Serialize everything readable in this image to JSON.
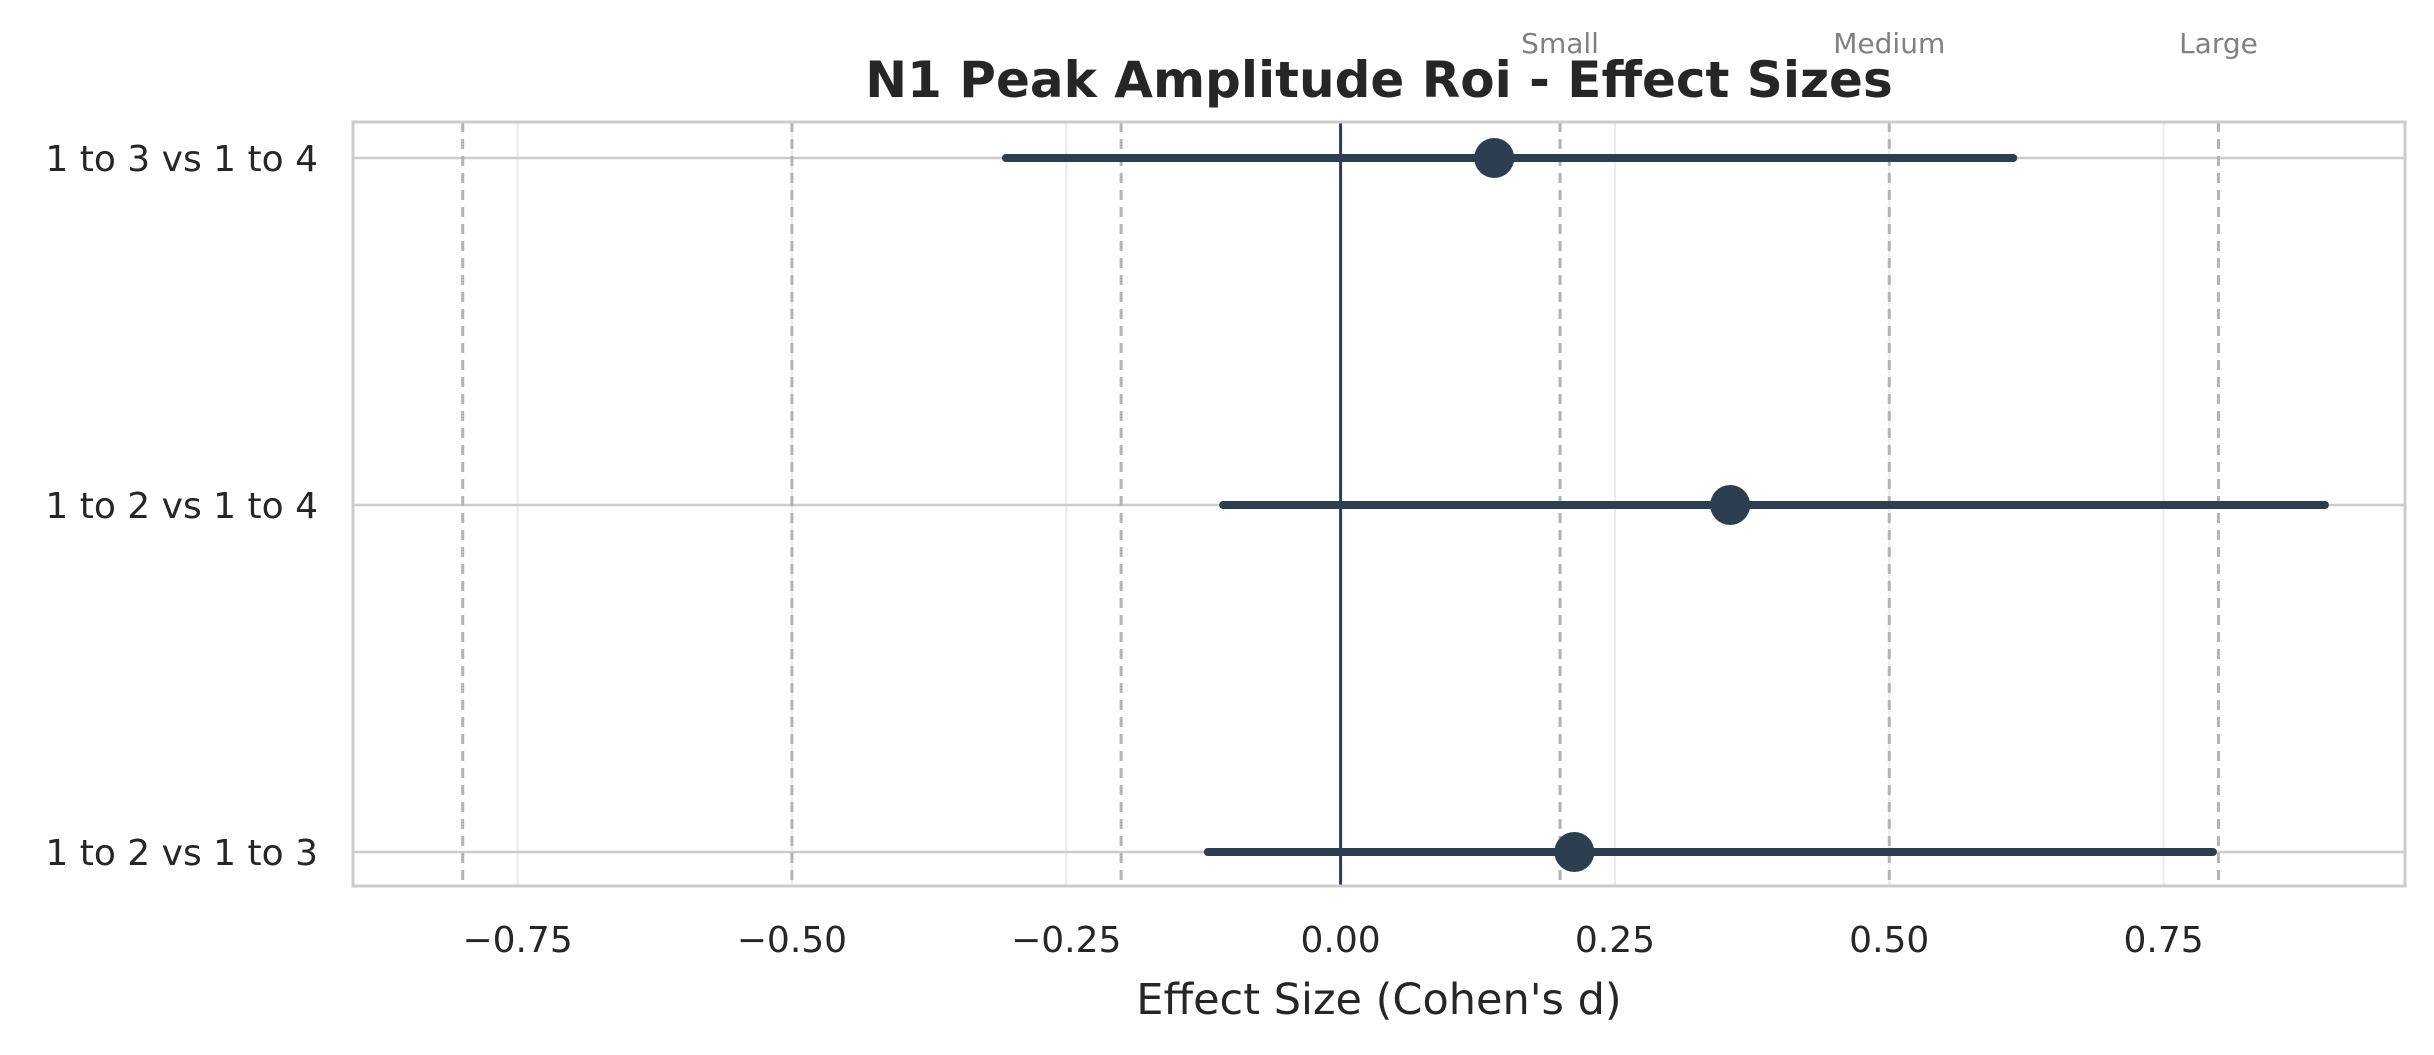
{
  "chart_data": {
    "type": "forest",
    "title": "N1 Peak Amplitude Roi - Effect Sizes",
    "xlabel": "Effect Size (Cohen's d)",
    "ylabel": "",
    "xlim": [
      -0.9,
      0.97
    ],
    "xticks": [
      -0.75,
      -0.5,
      -0.25,
      0.0,
      0.25,
      0.5,
      0.75
    ],
    "xtick_labels": [
      "−0.75",
      "−0.50",
      "−0.25",
      "0.00",
      "0.25",
      "0.50",
      "0.75"
    ],
    "grid": true,
    "zero_line": 0.0,
    "reference_lines": [
      -0.8,
      -0.5,
      -0.2,
      0.2,
      0.5,
      0.8
    ],
    "reference_labels": [
      {
        "value": 0.2,
        "text": "Small"
      },
      {
        "value": 0.5,
        "text": "Medium"
      },
      {
        "value": 0.8,
        "text": "Large"
      }
    ],
    "categories": [
      "1 to 3 vs 1 to 4",
      "1 to 2 vs 1 to 4",
      "1 to 2 vs 1 to 3"
    ],
    "estimates": [
      0.14,
      0.355,
      0.213
    ],
    "ci_lower": [
      -0.305,
      -0.107,
      -0.121
    ],
    "ci_upper": [
      0.613,
      0.897,
      0.795
    ],
    "colors": {
      "marker": "#2c3e50",
      "zero_line": "#2c3e50",
      "reference_line": "#b3b3b3",
      "grid": "#ebebeb",
      "spine": "#cccccc"
    }
  }
}
